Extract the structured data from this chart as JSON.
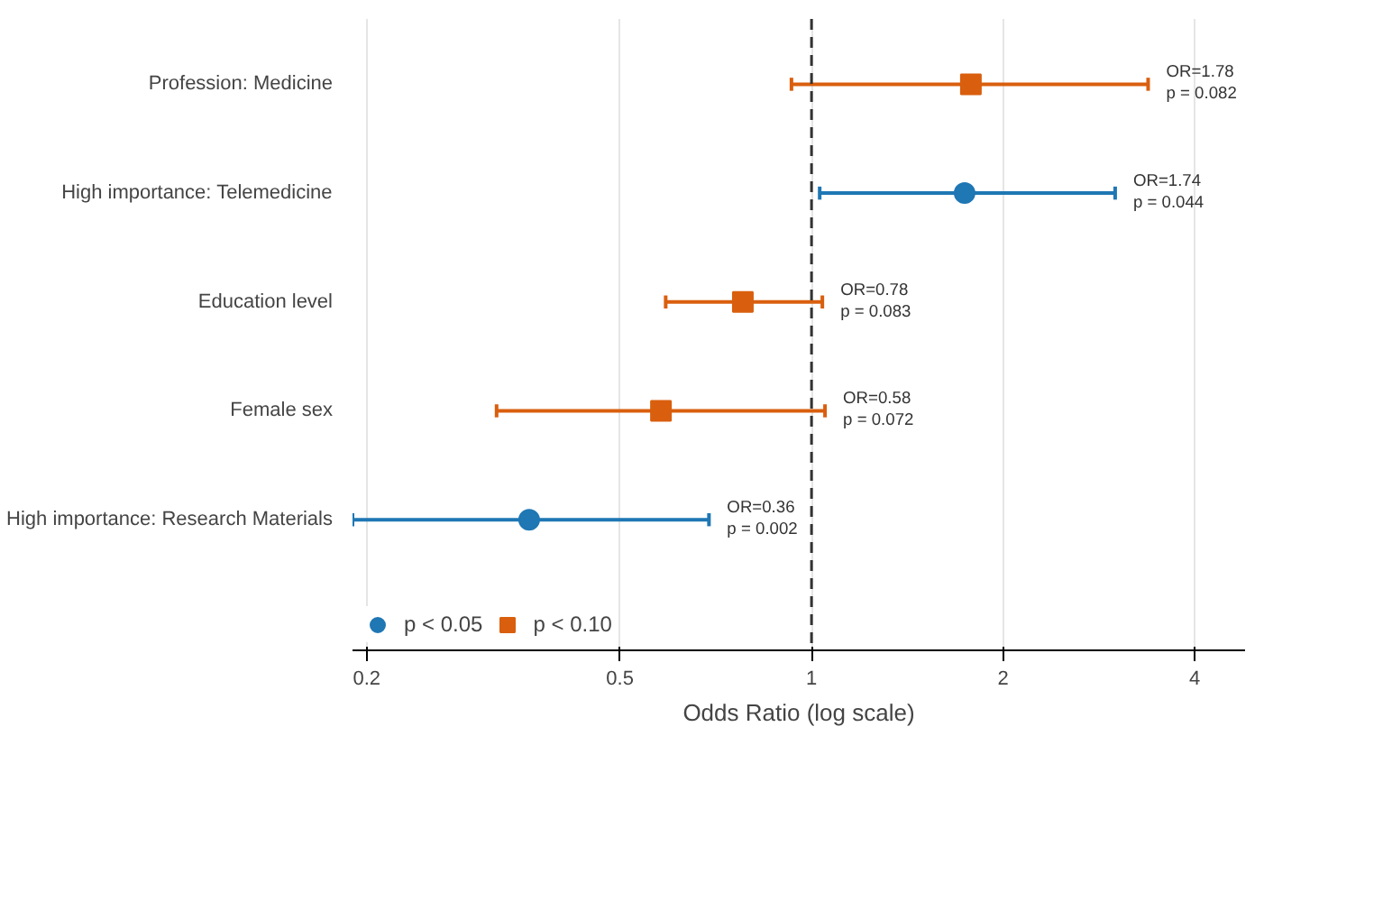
{
  "chart_data": {
    "type": "scatter",
    "orientation": "horizontal",
    "log": "x",
    "xlabel": "Odds Ratio (log scale)",
    "categories": [
      "Profession: Medicine",
      "High importance: Telemedicine",
      "Education level",
      "Female sex",
      "High importance: Research Materials"
    ],
    "series": [
      {
        "name": "p < 0.05",
        "color": "#1f77b4",
        "marker": "circle",
        "values": [
          null,
          1.74,
          null,
          null,
          0.36
        ],
        "errors": [
          null,
          [
            1.03,
            3.0
          ],
          null,
          null,
          [
            0.19,
            0.69
          ]
        ]
      },
      {
        "name": "p < 0.10",
        "color": "#d95f0e",
        "marker": "square",
        "values": [
          1.78,
          null,
          0.78,
          0.58,
          null
        ],
        "errors": [
          [
            0.93,
            3.38
          ],
          null,
          [
            0.59,
            1.04
          ],
          [
            0.32,
            1.05
          ],
          null
        ]
      }
    ],
    "xlim": [
      0.19,
      4.8
    ],
    "xticks": [
      0.2,
      0.5,
      1,
      2,
      4
    ],
    "grid": "x",
    "legend": "bottom",
    "ref_lines": [
      {
        "axis": "x",
        "value": 1,
        "line_style": "dashed",
        "color": "#333333"
      }
    ],
    "annotations": [
      {
        "text": "OR=1.78\np = 0.082",
        "x": 3.38,
        "y": "Profession: Medicine"
      },
      {
        "text": "OR=1.74\np = 0.044",
        "x": 3.0,
        "y": "High importance: Telemedicine"
      },
      {
        "text": "OR=0.78\np = 0.083",
        "x": 1.04,
        "y": "Education level"
      },
      {
        "text": "OR=0.58\np = 0.072",
        "x": 1.05,
        "y": "Female sex"
      },
      {
        "text": "OR=0.36\np = 0.002",
        "x": 0.69,
        "y": "High importance: Research Materials"
      }
    ]
  }
}
